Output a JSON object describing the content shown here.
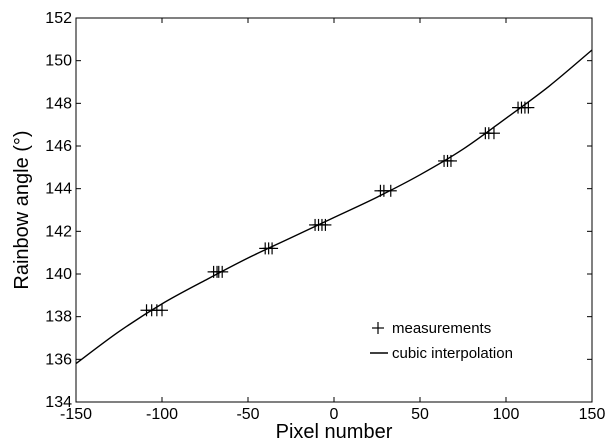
{
  "chart_data": {
    "type": "scatter",
    "title": "",
    "xlabel": "Pixel number",
    "ylabel": "Rainbow angle (°)",
    "xlim": [
      -150,
      150
    ],
    "ylim": [
      134,
      152
    ],
    "xticks": [
      -150,
      -100,
      -50,
      0,
      50,
      100,
      150
    ],
    "yticks": [
      134,
      136,
      138,
      140,
      142,
      144,
      146,
      148,
      150,
      152
    ],
    "xtick_labels": [
      "-150",
      "-100",
      "-50",
      "0",
      "50",
      "100",
      "150"
    ],
    "ytick_labels": [
      "134",
      "136",
      "138",
      "140",
      "142",
      "144",
      "146",
      "148",
      "150",
      "152"
    ],
    "grid": false,
    "legend_position": "bottom-right",
    "series": [
      {
        "name": "measurements",
        "marker": "plus",
        "color": "#000000",
        "points": [
          {
            "x": -109,
            "y": 138.3
          },
          {
            "x": -106,
            "y": 138.3
          },
          {
            "x": -103,
            "y": 138.3
          },
          {
            "x": -100,
            "y": 138.3
          },
          {
            "x": -70,
            "y": 140.1
          },
          {
            "x": -68,
            "y": 140.1
          },
          {
            "x": -67,
            "y": 140.1
          },
          {
            "x": -65,
            "y": 140.1
          },
          {
            "x": -40,
            "y": 141.2
          },
          {
            "x": -38,
            "y": 141.2
          },
          {
            "x": -36,
            "y": 141.2
          },
          {
            "x": -11,
            "y": 142.3
          },
          {
            "x": -9,
            "y": 142.3
          },
          {
            "x": -7,
            "y": 142.3
          },
          {
            "x": -5,
            "y": 142.3
          },
          {
            "x": 27,
            "y": 143.9
          },
          {
            "x": 29,
            "y": 143.9
          },
          {
            "x": 33,
            "y": 143.9
          },
          {
            "x": 64,
            "y": 145.3
          },
          {
            "x": 66,
            "y": 145.3
          },
          {
            "x": 68,
            "y": 145.3
          },
          {
            "x": 88,
            "y": 146.6
          },
          {
            "x": 90,
            "y": 146.6
          },
          {
            "x": 93,
            "y": 146.6
          },
          {
            "x": 107,
            "y": 147.8
          },
          {
            "x": 109,
            "y": 147.8
          },
          {
            "x": 111,
            "y": 147.8
          },
          {
            "x": 113,
            "y": 147.8
          }
        ]
      },
      {
        "name": "cubic interpolation",
        "style": "line",
        "color": "#000000",
        "x": [
          -150,
          -125,
          -100,
          -75,
          -50,
          -25,
          0,
          25,
          50,
          75,
          100,
          125,
          150
        ],
        "y": [
          135.8,
          137.3,
          138.6,
          139.7,
          140.75,
          141.7,
          142.65,
          143.6,
          144.65,
          145.85,
          147.3,
          148.8,
          150.5
        ]
      }
    ]
  }
}
